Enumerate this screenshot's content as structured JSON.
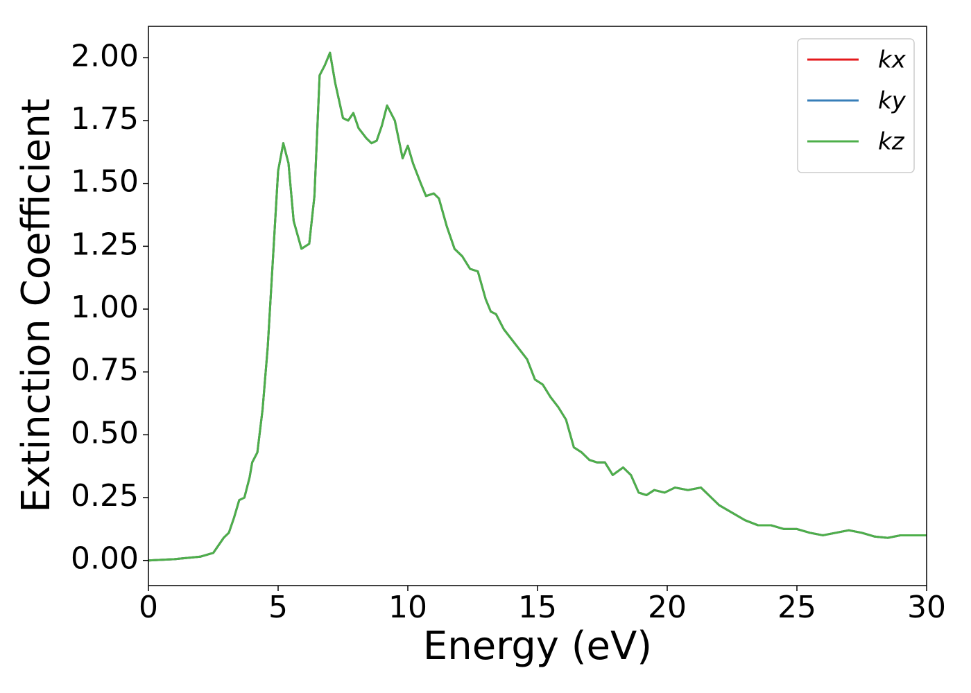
{
  "chart_data": {
    "type": "line",
    "xlabel": "Energy (eV)",
    "ylabel": "Extinction Coefficient",
    "x": [
      0,
      1,
      2,
      2.5,
      2.7,
      2.9,
      3.1,
      3.3,
      3.5,
      3.7,
      3.9,
      4.0,
      4.2,
      4.4,
      4.6,
      4.8,
      5.0,
      5.2,
      5.4,
      5.6,
      5.9,
      6.2,
      6.4,
      6.6,
      6.8,
      7.0,
      7.2,
      7.5,
      7.7,
      7.9,
      8.1,
      8.4,
      8.6,
      8.8,
      9.0,
      9.2,
      9.5,
      9.8,
      10.0,
      10.2,
      10.5,
      10.7,
      11.0,
      11.2,
      11.5,
      11.8,
      12.1,
      12.4,
      12.7,
      13.0,
      13.2,
      13.4,
      13.7,
      14.0,
      14.3,
      14.6,
      14.9,
      15.2,
      15.5,
      15.8,
      16.1,
      16.4,
      16.7,
      17.0,
      17.3,
      17.6,
      17.9,
      18.3,
      18.6,
      18.9,
      19.2,
      19.5,
      19.9,
      20.3,
      20.8,
      21.3,
      21.6,
      22.0,
      22.5,
      23.0,
      23.5,
      24.0,
      24.5,
      25.0,
      25.5,
      26.0,
      26.5,
      27.0,
      27.5,
      28.0,
      28.5,
      29.0,
      29.5,
      30.0
    ],
    "series": [
      {
        "name": "kx",
        "color": "#e41a1c",
        "values": [
          0,
          0.005,
          0.015,
          0.03,
          0.06,
          0.09,
          0.11,
          0.17,
          0.24,
          0.25,
          0.33,
          0.39,
          0.43,
          0.6,
          0.85,
          1.2,
          1.55,
          1.66,
          1.58,
          1.35,
          1.24,
          1.26,
          1.45,
          1.93,
          1.97,
          2.02,
          1.9,
          1.76,
          1.75,
          1.78,
          1.72,
          1.68,
          1.66,
          1.67,
          1.73,
          1.81,
          1.75,
          1.6,
          1.65,
          1.58,
          1.5,
          1.45,
          1.46,
          1.44,
          1.33,
          1.24,
          1.21,
          1.16,
          1.15,
          1.04,
          0.99,
          0.98,
          0.92,
          0.88,
          0.84,
          0.8,
          0.72,
          0.7,
          0.65,
          0.61,
          0.56,
          0.45,
          0.43,
          0.4,
          0.39,
          0.39,
          0.34,
          0.37,
          0.34,
          0.27,
          0.26,
          0.28,
          0.27,
          0.29,
          0.28,
          0.29,
          0.26,
          0.22,
          0.19,
          0.16,
          0.14,
          0.14,
          0.125,
          0.125,
          0.11,
          0.1,
          0.11,
          0.12,
          0.11,
          0.095,
          0.09,
          0.1,
          0.1,
          0.1
        ]
      },
      {
        "name": "ky",
        "color": "#377eb8",
        "values": [
          0,
          0.005,
          0.015,
          0.03,
          0.06,
          0.09,
          0.11,
          0.17,
          0.24,
          0.25,
          0.33,
          0.39,
          0.43,
          0.6,
          0.85,
          1.2,
          1.55,
          1.66,
          1.58,
          1.35,
          1.24,
          1.26,
          1.45,
          1.93,
          1.97,
          2.02,
          1.9,
          1.76,
          1.75,
          1.78,
          1.72,
          1.68,
          1.66,
          1.67,
          1.73,
          1.81,
          1.75,
          1.6,
          1.65,
          1.58,
          1.5,
          1.45,
          1.46,
          1.44,
          1.33,
          1.24,
          1.21,
          1.16,
          1.15,
          1.04,
          0.99,
          0.98,
          0.92,
          0.88,
          0.84,
          0.8,
          0.72,
          0.7,
          0.65,
          0.61,
          0.56,
          0.45,
          0.43,
          0.4,
          0.39,
          0.39,
          0.34,
          0.37,
          0.34,
          0.27,
          0.26,
          0.28,
          0.27,
          0.29,
          0.28,
          0.29,
          0.26,
          0.22,
          0.19,
          0.16,
          0.14,
          0.14,
          0.125,
          0.125,
          0.11,
          0.1,
          0.11,
          0.12,
          0.11,
          0.095,
          0.09,
          0.1,
          0.1,
          0.1
        ]
      },
      {
        "name": "kz",
        "color": "#4daf4a",
        "values": [
          0,
          0.005,
          0.015,
          0.03,
          0.06,
          0.09,
          0.11,
          0.17,
          0.24,
          0.25,
          0.33,
          0.39,
          0.43,
          0.6,
          0.85,
          1.2,
          1.55,
          1.66,
          1.58,
          1.35,
          1.24,
          1.26,
          1.45,
          1.93,
          1.97,
          2.02,
          1.9,
          1.76,
          1.75,
          1.78,
          1.72,
          1.68,
          1.66,
          1.67,
          1.73,
          1.81,
          1.75,
          1.6,
          1.65,
          1.58,
          1.5,
          1.45,
          1.46,
          1.44,
          1.33,
          1.24,
          1.21,
          1.16,
          1.15,
          1.04,
          0.99,
          0.98,
          0.92,
          0.88,
          0.84,
          0.8,
          0.72,
          0.7,
          0.65,
          0.61,
          0.56,
          0.45,
          0.43,
          0.4,
          0.39,
          0.39,
          0.34,
          0.37,
          0.34,
          0.27,
          0.26,
          0.28,
          0.27,
          0.29,
          0.28,
          0.29,
          0.26,
          0.22,
          0.19,
          0.16,
          0.14,
          0.14,
          0.125,
          0.125,
          0.11,
          0.1,
          0.11,
          0.12,
          0.11,
          0.095,
          0.09,
          0.1,
          0.1,
          0.1
        ]
      }
    ],
    "xlim": [
      0,
      30
    ],
    "xticks": [
      0,
      5,
      10,
      15,
      20,
      25,
      30
    ],
    "ylim": [
      -0.1,
      2.125
    ],
    "yticks": [
      {
        "value": 0,
        "label": "0.00"
      },
      {
        "value": 0.25,
        "label": "0.25"
      },
      {
        "value": 0.5,
        "label": "0.50"
      },
      {
        "value": 0.75,
        "label": "0.75"
      },
      {
        "value": 1,
        "label": "1.00"
      },
      {
        "value": 1.25,
        "label": "1.25"
      },
      {
        "value": 1.5,
        "label": "1.50"
      },
      {
        "value": 1.75,
        "label": "1.75"
      },
      {
        "value": 2,
        "label": "2.00"
      }
    ],
    "grid": false,
    "legend": "upper right"
  }
}
